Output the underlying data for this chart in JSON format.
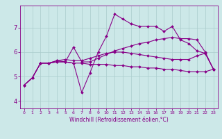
{
  "title": "",
  "xlabel": "Windchill (Refroidissement éolien,°C)",
  "background_color": "#cce8e8",
  "line_color": "#880088",
  "grid_color": "#aacccc",
  "x_ticks": [
    0,
    1,
    2,
    3,
    4,
    5,
    6,
    7,
    8,
    9,
    10,
    11,
    12,
    13,
    14,
    15,
    16,
    17,
    18,
    19,
    20,
    21,
    22,
    23
  ],
  "y_ticks": [
    4,
    5,
    6,
    7
  ],
  "ylim": [
    3.7,
    7.9
  ],
  "xlim": [
    -0.5,
    23.5
  ],
  "line1_x": [
    0,
    1,
    2,
    3,
    4,
    5,
    6,
    7,
    8,
    9,
    10,
    11,
    12,
    13,
    14,
    15,
    16,
    17,
    18,
    19,
    20,
    21,
    22,
    23
  ],
  "line1_y": [
    4.65,
    4.95,
    5.55,
    5.55,
    5.6,
    5.6,
    5.55,
    4.35,
    5.15,
    6.0,
    6.65,
    7.55,
    7.35,
    7.15,
    7.05,
    7.05,
    7.05,
    6.85,
    7.05,
    6.5,
    6.35,
    6.05,
    5.95,
    5.3
  ],
  "line2_x": [
    0,
    1,
    2,
    3,
    4,
    5,
    6,
    7,
    8,
    9,
    10,
    11,
    12,
    13,
    14,
    15,
    16,
    17,
    18,
    19,
    20,
    21,
    22,
    23
  ],
  "line2_y": [
    4.65,
    4.95,
    5.55,
    5.55,
    5.65,
    5.6,
    6.2,
    5.6,
    5.6,
    5.75,
    5.9,
    6.05,
    6.15,
    6.25,
    6.35,
    6.4,
    6.5,
    6.55,
    6.6,
    6.55,
    6.55,
    6.5,
    6.0,
    5.3
  ],
  "line3_x": [
    0,
    1,
    2,
    3,
    4,
    5,
    6,
    7,
    8,
    9,
    10,
    11,
    12,
    13,
    14,
    15,
    16,
    17,
    18,
    19,
    20,
    21,
    22,
    23
  ],
  "line3_y": [
    4.65,
    4.95,
    5.55,
    5.55,
    5.6,
    5.6,
    5.55,
    5.55,
    5.5,
    5.5,
    5.5,
    5.45,
    5.45,
    5.4,
    5.4,
    5.35,
    5.35,
    5.3,
    5.3,
    5.25,
    5.2,
    5.2,
    5.2,
    5.3
  ],
  "line4_x": [
    0,
    1,
    2,
    3,
    4,
    5,
    6,
    7,
    8,
    9,
    10,
    11,
    12,
    13,
    14,
    15,
    16,
    17,
    18,
    19,
    20,
    21,
    22,
    23
  ],
  "line4_y": [
    4.65,
    4.95,
    5.55,
    5.55,
    5.65,
    5.7,
    5.65,
    5.65,
    5.75,
    5.85,
    5.95,
    6.0,
    6.0,
    5.95,
    5.9,
    5.85,
    5.8,
    5.75,
    5.7,
    5.7,
    5.7,
    5.85,
    5.95,
    5.3
  ],
  "xlabel_fontsize": 5.5,
  "tick_fontsize_x": 4.5,
  "tick_fontsize_y": 6,
  "marker_size": 2.0,
  "line_width": 0.8
}
